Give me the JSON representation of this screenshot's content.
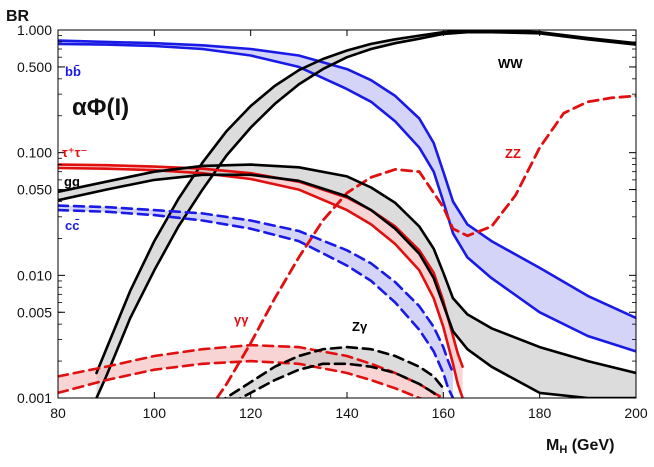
{
  "chart_data": {
    "type": "line",
    "y_scale": "log",
    "title": "",
    "annotation": "αΦ(I)",
    "xlabel": "M",
    "xlabel_sub": "H",
    "xlabel_unit": " (GeV)",
    "ylabel": "BR",
    "xlim": [
      80,
      200
    ],
    "ylim": [
      0.001,
      1.0
    ],
    "x_ticks": [
      80,
      100,
      120,
      140,
      160,
      180,
      200
    ],
    "y_ticks": [
      {
        "value": 1.0,
        "label": "1.000"
      },
      {
        "value": 0.5,
        "label": "0.500"
      },
      {
        "value": 0.1,
        "label": "0.100"
      },
      {
        "value": 0.05,
        "label": "0.050"
      },
      {
        "value": 0.01,
        "label": "0.010"
      },
      {
        "value": 0.005,
        "label": "0.005"
      },
      {
        "value": 0.001,
        "label": "0.001"
      }
    ],
    "series": [
      {
        "name": "bb",
        "label": "bb̄",
        "color": "#1a1ae6",
        "band_color": "#b8b8f5",
        "dash": "solid",
        "x": [
          80,
          90,
          100,
          110,
          120,
          130,
          140,
          145,
          150,
          155,
          158,
          160,
          162,
          165,
          170,
          180,
          190,
          200
        ],
        "lo": [
          0.77,
          0.76,
          0.74,
          0.7,
          0.62,
          0.5,
          0.33,
          0.26,
          0.18,
          0.11,
          0.07,
          0.04,
          0.022,
          0.014,
          0.0095,
          0.005,
          0.0032,
          0.0024
        ],
        "hi": [
          0.82,
          0.8,
          0.78,
          0.75,
          0.7,
          0.62,
          0.48,
          0.39,
          0.29,
          0.19,
          0.12,
          0.07,
          0.04,
          0.026,
          0.019,
          0.0115,
          0.0068,
          0.0045
        ]
      },
      {
        "name": "WW",
        "label": "WW",
        "color": "#000000",
        "band_color": "#c4c4c4",
        "dash": "solid",
        "x": [
          88,
          90,
          95,
          100,
          105,
          110,
          115,
          120,
          125,
          130,
          135,
          140,
          145,
          150,
          155,
          160,
          165,
          170,
          180,
          190,
          200
        ],
        "lo": [
          0.001,
          0.0015,
          0.0045,
          0.011,
          0.025,
          0.05,
          0.095,
          0.16,
          0.25,
          0.36,
          0.48,
          0.6,
          0.7,
          0.78,
          0.85,
          0.93,
          0.96,
          0.96,
          0.94,
          0.84,
          0.76
        ],
        "hi": [
          0.0016,
          0.0025,
          0.0075,
          0.019,
          0.042,
          0.083,
          0.15,
          0.24,
          0.35,
          0.47,
          0.58,
          0.68,
          0.77,
          0.84,
          0.9,
          0.96,
          0.99,
          0.99,
          0.96,
          0.86,
          0.78
        ]
      },
      {
        "name": "ZZ",
        "label": "ZZ",
        "color": "#e01010",
        "dash": "dashed",
        "x": [
          113,
          115,
          120,
          125,
          130,
          135,
          140,
          145,
          150,
          155,
          160,
          162,
          165,
          170,
          175,
          180,
          185,
          190,
          195,
          200
        ],
        "values": [
          0.001,
          0.0013,
          0.0028,
          0.0065,
          0.014,
          0.028,
          0.047,
          0.063,
          0.073,
          0.07,
          0.036,
          0.024,
          0.021,
          0.025,
          0.045,
          0.11,
          0.21,
          0.26,
          0.28,
          0.29
        ]
      },
      {
        "name": "tautau",
        "label": "τ⁺τ⁻",
        "color": "#e01010",
        "band_color": "#f5b8b8",
        "dash": "solid",
        "x": [
          80,
          90,
          100,
          110,
          120,
          130,
          140,
          145,
          150,
          155,
          158,
          160,
          162,
          163,
          164
        ],
        "lo": [
          0.075,
          0.074,
          0.072,
          0.068,
          0.061,
          0.05,
          0.034,
          0.026,
          0.018,
          0.011,
          0.0065,
          0.0038,
          0.0019,
          0.0013,
          0.001
        ],
        "hi": [
          0.08,
          0.079,
          0.077,
          0.074,
          0.068,
          0.058,
          0.043,
          0.034,
          0.025,
          0.016,
          0.0105,
          0.0062,
          0.0032,
          0.0023,
          0.0018
        ]
      },
      {
        "name": "gg",
        "label": "gg",
        "color": "#000000",
        "band_color": "#c4c4c4",
        "dash": "solid",
        "x": [
          80,
          90,
          100,
          110,
          120,
          130,
          140,
          145,
          150,
          155,
          158,
          160,
          162,
          165,
          170,
          180,
          190,
          200
        ],
        "lo": [
          0.041,
          0.05,
          0.06,
          0.066,
          0.066,
          0.059,
          0.044,
          0.034,
          0.024,
          0.015,
          0.0095,
          0.0058,
          0.0035,
          0.0025,
          0.0018,
          0.0011,
          0.001,
          0.001
        ],
        "hi": [
          0.048,
          0.058,
          0.07,
          0.078,
          0.08,
          0.076,
          0.064,
          0.052,
          0.039,
          0.025,
          0.0165,
          0.0105,
          0.0065,
          0.0048,
          0.0037,
          0.0026,
          0.002,
          0.0016
        ]
      },
      {
        "name": "cc",
        "label": "cc̄",
        "color": "#1a1ae6",
        "band_color": "#b8b8f5",
        "dash": "dashed",
        "x": [
          80,
          90,
          100,
          110,
          120,
          130,
          140,
          145,
          150,
          155,
          158,
          160,
          161,
          162
        ],
        "lo": [
          0.034,
          0.033,
          0.031,
          0.028,
          0.024,
          0.019,
          0.012,
          0.009,
          0.006,
          0.0036,
          0.0024,
          0.0016,
          0.0012,
          0.001
        ],
        "hi": [
          0.037,
          0.036,
          0.034,
          0.032,
          0.028,
          0.023,
          0.016,
          0.0125,
          0.0088,
          0.0056,
          0.0038,
          0.0026,
          0.002,
          0.0016
        ]
      },
      {
        "name": "gammagamma",
        "label": "γγ",
        "color": "#e01010",
        "band_color": "#f5b8b8",
        "dash": "dashed",
        "x": [
          80,
          90,
          100,
          110,
          120,
          130,
          140,
          145,
          150,
          155,
          158,
          160
        ],
        "lo": [
          0.0011,
          0.0014,
          0.0017,
          0.0019,
          0.002,
          0.0019,
          0.0016,
          0.0014,
          0.0012,
          0.001,
          0.0009,
          0.0008
        ],
        "hi": [
          0.0015,
          0.0018,
          0.0022,
          0.0025,
          0.0027,
          0.0026,
          0.0022,
          0.0019,
          0.0016,
          0.0013,
          0.0011,
          0.001
        ]
      },
      {
        "name": "Zgamma",
        "label": "Zγ",
        "color": "#000000",
        "band_color": "#c4c4c4",
        "dash": "dashed",
        "x": [
          113,
          118,
          125,
          130,
          135,
          140,
          145,
          150,
          155,
          158,
          160
        ],
        "lo": [
          0.0008,
          0.001,
          0.0014,
          0.0017,
          0.0019,
          0.0019,
          0.0018,
          0.0016,
          0.0013,
          0.0011,
          0.0009
        ],
        "hi": [
          0.0009,
          0.0012,
          0.0018,
          0.0022,
          0.0025,
          0.0026,
          0.0025,
          0.0022,
          0.0018,
          0.0015,
          0.0012
        ]
      }
    ]
  }
}
